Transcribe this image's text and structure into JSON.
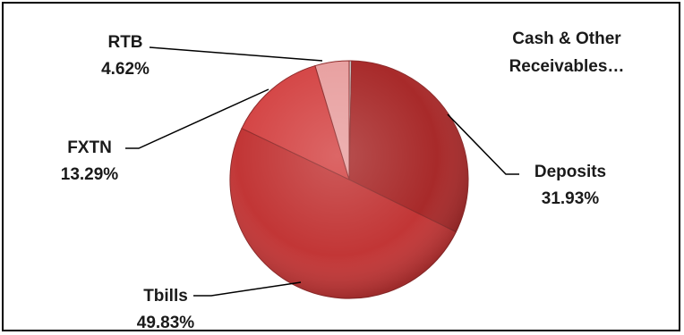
{
  "chart_data": {
    "type": "pie",
    "title": "",
    "slices": [
      {
        "label": "Cash & Other Receivables…",
        "value": 0.33,
        "value_label": "",
        "color": "#c2c2c2"
      },
      {
        "label": "Deposits",
        "value": 31.93,
        "value_label": "31.93%",
        "color": "#a82a2a"
      },
      {
        "label": "Tbills",
        "value": 49.83,
        "value_label": "49.83%",
        "color": "#c23636"
      },
      {
        "label": "FXTN",
        "value": 13.29,
        "value_label": "13.29%",
        "color": "#d44545"
      },
      {
        "label": "RTB",
        "value": 4.62,
        "value_label": "4.62%",
        "color": "#e8a0a0"
      }
    ],
    "start": "top",
    "direction": "clockwise",
    "legend": "none",
    "data_labels": "outside-with-leader-lines"
  },
  "cash_label": {
    "line1": "Cash & Other",
    "line2": "Receivables…"
  },
  "labels": {
    "rtb": {
      "name": "RTB",
      "pct": "4.62%"
    },
    "fxtn": {
      "name": "FXTN",
      "pct": "13.29%"
    },
    "deposits": {
      "name": "Deposits",
      "pct": "31.93%"
    },
    "tbills": {
      "name": "Tbills",
      "pct": "49.83%"
    }
  }
}
